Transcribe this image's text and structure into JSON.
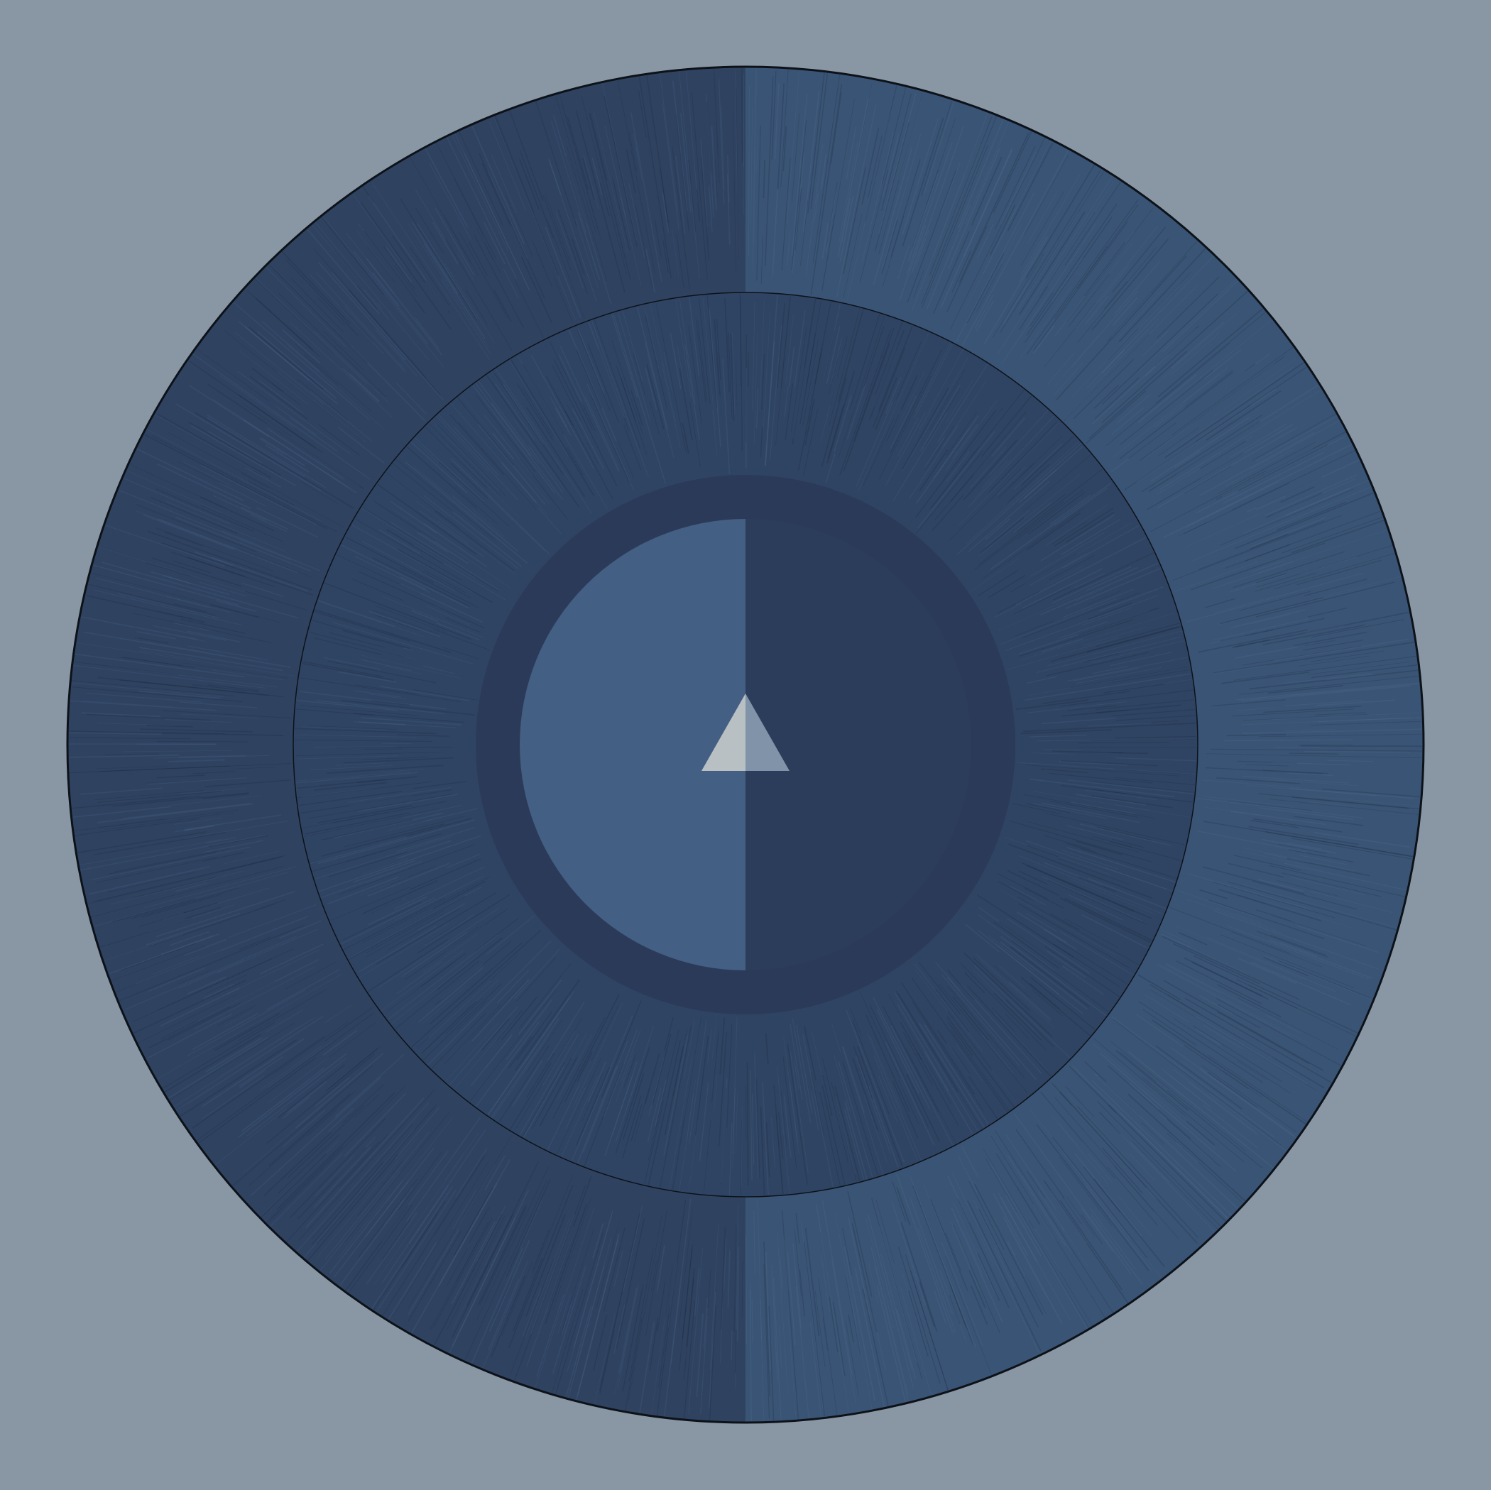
{
  "scene": {
    "background_color": "#8996a4",
    "outer_ring": {
      "left_half_color": "#2f4361",
      "right_half_color": "#3a5475",
      "outline_color": "#0d1219"
    },
    "middle_ring": {
      "left_half_color": "#2f4463",
      "right_half_color": "#2f4462",
      "outline_color": "#0d1219"
    },
    "inner_ring": {
      "color": "#2b3a58"
    },
    "core": {
      "left_half_color": "#435f83",
      "right_half_color": "#2c3d5b"
    },
    "center_marker": {
      "icon": "triangle-up-icon",
      "left_half_color": "#b9c0c4",
      "right_half_color": "#8093a8"
    }
  }
}
